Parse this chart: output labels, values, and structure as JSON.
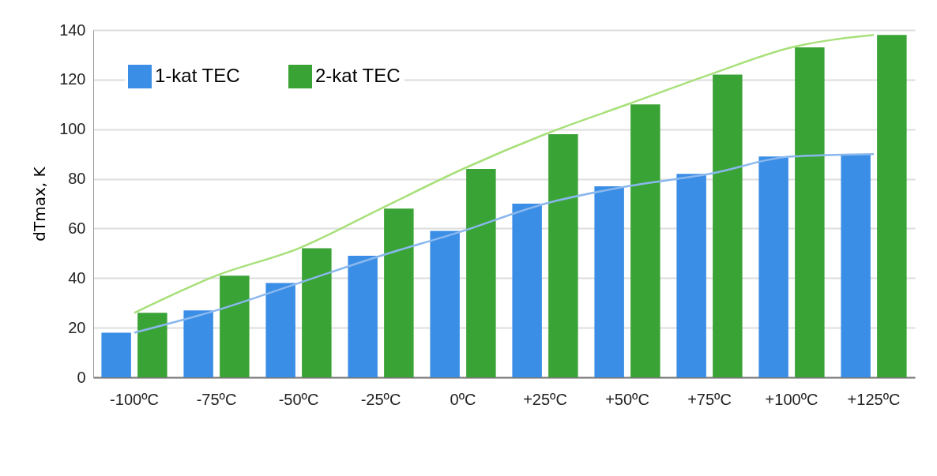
{
  "chart_data": {
    "type": "bar",
    "ylabel": "dTmax, K",
    "categories": [
      "-100ºC",
      "-75ºC",
      "-50ºC",
      "-25ºC",
      "0ºC",
      "+25ºC",
      "+50ºC",
      "+75ºC",
      "+100ºC",
      "+125ºC"
    ],
    "series": [
      {
        "name": "1-kat TEC",
        "color": "#3a8ee6",
        "values": [
          18,
          27,
          38,
          49,
          59,
          70,
          77,
          82,
          89,
          90
        ]
      },
      {
        "name": "2-kat TEC",
        "color": "#3aa335",
        "values": [
          26,
          41,
          52,
          68,
          84,
          98,
          110,
          122,
          133,
          138
        ]
      },
      {
        "type": "line",
        "color": "#8ab8ee",
        "values": [
          18,
          27,
          38,
          49,
          59,
          70,
          77,
          82,
          89,
          90
        ]
      },
      {
        "type": "line",
        "color": "#a8e07a",
        "values": [
          26,
          41,
          52,
          68,
          84,
          98,
          110,
          122,
          133,
          138
        ]
      }
    ],
    "ylim": [
      0,
      140
    ],
    "yticks": [
      0,
      20,
      40,
      60,
      80,
      100,
      120,
      140
    ],
    "grid": "y",
    "legend": "top left"
  }
}
